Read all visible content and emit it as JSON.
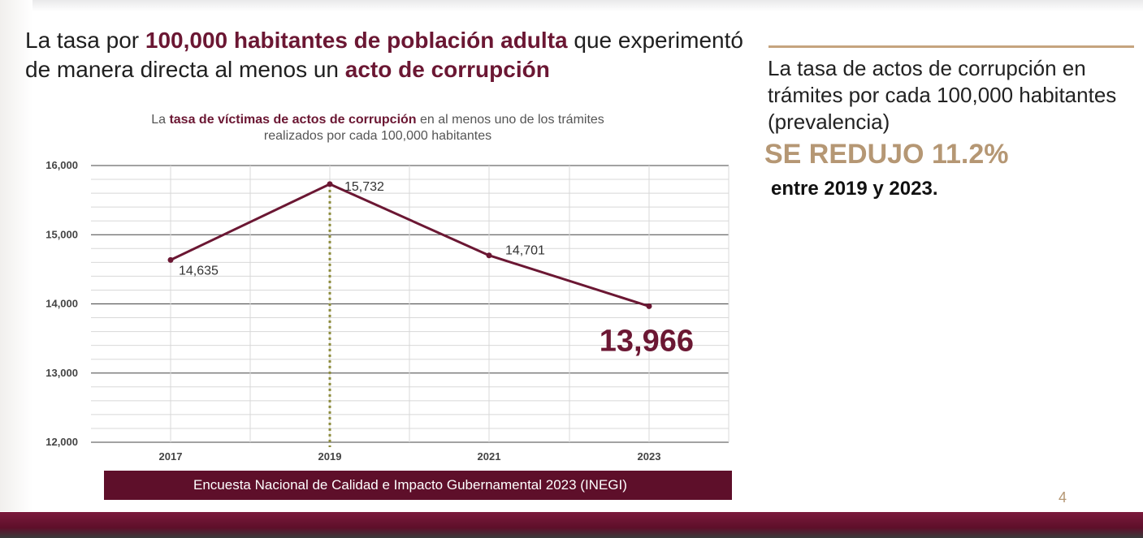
{
  "title": {
    "part1": "La tasa por ",
    "bold1": "100,000 habitantes de población adulta",
    "part2": " que experimentó de manera directa al menos un ",
    "bold2": "acto de corrupción"
  },
  "chart_subtitle": {
    "part1": "La ",
    "bold": "tasa de víctimas de actos de corrupción",
    "part2": " en al menos uno de los trámites",
    "line2": "realizados por cada 100,000 habitantes"
  },
  "chart_data": {
    "type": "line",
    "title": "La tasa de víctimas de actos de corrupción en al menos uno de los trámites realizados por cada 100,000 habitantes",
    "categories": [
      "2017",
      "2019",
      "2021",
      "2023"
    ],
    "values": [
      14635,
      15732,
      14701,
      13966
    ],
    "data_labels": [
      "14,635",
      "15,732",
      "14,701",
      "13,966"
    ],
    "y_ticks": [
      "12,000",
      "13,000",
      "14,000",
      "15,000",
      "16,000"
    ],
    "ylim": [
      12000,
      16000
    ],
    "grid": true,
    "highlight_category": "2019",
    "colors": {
      "line": "#6b1733",
      "highlight": "#8c8b3a",
      "grid_major": "#444444",
      "grid_minor": "#d8d8d8"
    }
  },
  "source": "Encuesta Nacional de Calidad e Impacto Gubernamental 2023 (INEGI)",
  "side_panel": {
    "text": "La tasa de actos de corrupción en trámites por cada 100,000 habitantes (prevalencia)",
    "headline": "SE REDUJO 11.2%",
    "period": "entre 2019 y 2023."
  },
  "page_number": "4",
  "colors": {
    "accent": "#6b1733",
    "gold": "#b59774",
    "bar": "#5e0f2a"
  }
}
